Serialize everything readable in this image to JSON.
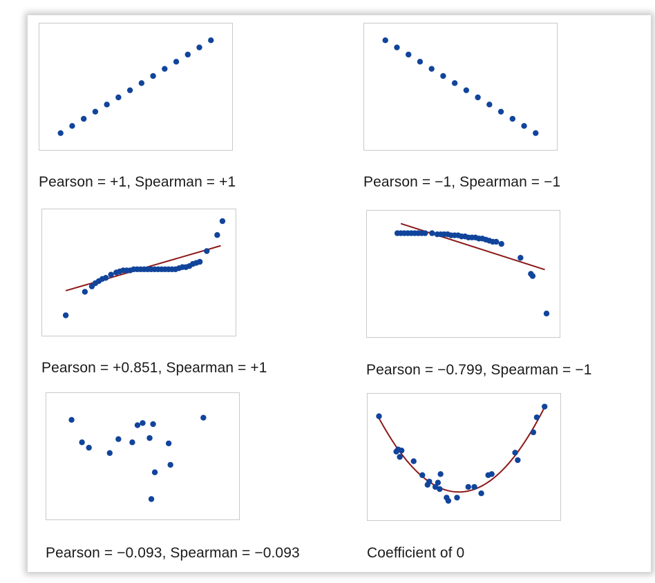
{
  "chart_data": [
    {
      "type": "scatter",
      "caption": "Pearson = +1, Spearman = +1",
      "x_range": [
        0,
        15
      ],
      "y_range": [
        0,
        15
      ],
      "x": [
        1,
        2,
        3,
        4,
        5,
        6,
        7,
        8,
        9,
        10,
        11,
        12,
        13,
        14
      ],
      "y": [
        1,
        2,
        3,
        4,
        5,
        6,
        7,
        8,
        9,
        10,
        11,
        12,
        13,
        14
      ],
      "fit": []
    },
    {
      "type": "scatter",
      "caption": "Pearson = −1, Spearman = −1",
      "x_range": [
        0,
        15
      ],
      "y_range": [
        0,
        15
      ],
      "x": [
        1,
        2,
        3,
        4,
        5,
        6,
        7,
        8,
        9,
        10,
        11,
        12,
        13,
        14
      ],
      "y": [
        14,
        13,
        12,
        11,
        10,
        9,
        8,
        7,
        6,
        5,
        4,
        3,
        2,
        1
      ],
      "fit": []
    },
    {
      "type": "scatter",
      "caption": "Pearson = +0.851, Spearman = +1",
      "x_range": [
        0,
        1
      ],
      "y_range": [
        0,
        1
      ],
      "x": [
        0.08,
        0.19,
        0.23,
        0.25,
        0.27,
        0.29,
        0.31,
        0.34,
        0.37,
        0.39,
        0.41,
        0.43,
        0.45,
        0.47,
        0.49,
        0.51,
        0.53,
        0.55,
        0.57,
        0.59,
        0.61,
        0.63,
        0.65,
        0.67,
        0.69,
        0.71,
        0.73,
        0.75,
        0.77,
        0.79,
        0.81,
        0.83,
        0.85,
        0.89,
        0.95,
        0.98
      ],
      "y": [
        0.1,
        0.32,
        0.37,
        0.4,
        0.42,
        0.44,
        0.45,
        0.48,
        0.5,
        0.51,
        0.52,
        0.52,
        0.52,
        0.53,
        0.53,
        0.53,
        0.53,
        0.53,
        0.53,
        0.53,
        0.53,
        0.53,
        0.53,
        0.53,
        0.53,
        0.53,
        0.54,
        0.55,
        0.55,
        0.56,
        0.58,
        0.59,
        0.6,
        0.7,
        0.85,
        0.98
      ],
      "fit": [
        [
          0.08,
          0.33
        ],
        [
          0.97,
          0.75
        ]
      ]
    },
    {
      "type": "scatter",
      "caption": "Pearson = −0.799, Spearman = −1",
      "x_range": [
        0,
        1
      ],
      "y_range": [
        0,
        1
      ],
      "x": [
        0.12,
        0.14,
        0.16,
        0.18,
        0.2,
        0.22,
        0.24,
        0.26,
        0.28,
        0.32,
        0.35,
        0.37,
        0.39,
        0.41,
        0.43,
        0.45,
        0.47,
        0.49,
        0.51,
        0.53,
        0.55,
        0.57,
        0.59,
        0.61,
        0.63,
        0.65,
        0.67,
        0.69,
        0.72,
        0.83,
        0.89,
        0.9,
        0.98
      ],
      "y": [
        0.88,
        0.88,
        0.88,
        0.88,
        0.88,
        0.88,
        0.88,
        0.88,
        0.88,
        0.88,
        0.87,
        0.87,
        0.87,
        0.87,
        0.86,
        0.86,
        0.86,
        0.85,
        0.85,
        0.84,
        0.84,
        0.84,
        0.83,
        0.83,
        0.82,
        0.81,
        0.8,
        0.8,
        0.78,
        0.65,
        0.5,
        0.48,
        0.13
      ],
      "fit": [
        [
          0.14,
          0.97
        ],
        [
          0.97,
          0.54
        ]
      ]
    },
    {
      "type": "scatter",
      "caption": "Pearson = −0.093, Spearman = −0.093",
      "x_range": [
        0,
        1
      ],
      "y_range": [
        0,
        1
      ],
      "x": [
        0.09,
        0.15,
        0.19,
        0.31,
        0.36,
        0.44,
        0.47,
        0.5,
        0.54,
        0.55,
        0.56,
        0.57,
        0.65,
        0.66,
        0.85
      ],
      "y": [
        0.84,
        0.63,
        0.58,
        0.53,
        0.66,
        0.63,
        0.79,
        0.81,
        0.67,
        0.1,
        0.8,
        0.35,
        0.62,
        0.42,
        0.86
      ],
      "fit": []
    },
    {
      "type": "scatter",
      "caption": "Coefficient of 0",
      "x_range": [
        -1,
        1
      ],
      "y_range": [
        0,
        1
      ],
      "x": [
        -0.98,
        -0.78,
        -0.76,
        -0.74,
        -0.72,
        -0.58,
        -0.48,
        -0.42,
        -0.4,
        -0.33,
        -0.3,
        -0.28,
        -0.27,
        -0.2,
        -0.18,
        -0.08,
        0.05,
        0.12,
        0.2,
        0.28,
        0.32,
        0.59,
        0.62,
        0.8,
        0.84,
        0.93
      ],
      "y": [
        0.88,
        0.55,
        0.57,
        0.5,
        0.56,
        0.46,
        0.33,
        0.24,
        0.27,
        0.22,
        0.26,
        0.2,
        0.34,
        0.12,
        0.09,
        0.12,
        0.22,
        0.22,
        0.16,
        0.33,
        0.34,
        0.54,
        0.47,
        0.73,
        0.87,
        0.97
      ],
      "fit": "quadratic"
    }
  ],
  "colors": {
    "points": "#11449b",
    "fit_line": "#8b1717"
  }
}
